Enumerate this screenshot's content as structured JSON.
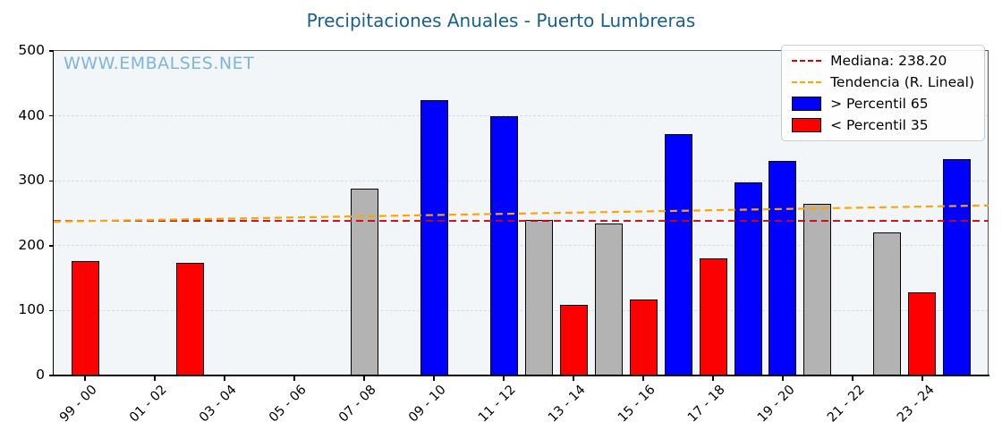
{
  "colors": {
    "title": "#19608c",
    "watermark": "#7fb6d8",
    "high": "#0000ff",
    "low": "#ff0000",
    "mid": "#b3b3b3",
    "bar_edge": "#000000",
    "median_line": "#dd0000",
    "trend_line": "#ffa500",
    "plot_bg": "#f2f6f9",
    "grid": "#d4dce3"
  },
  "chart_data": {
    "type": "bar",
    "title": "Precipitaciones Anuales - Puerto Lumbreras",
    "watermark": "WWW.EMBALSES.NET",
    "xlabel": "",
    "ylabel": "",
    "ylim": [
      0,
      500
    ],
    "yticks": [
      0,
      100,
      200,
      300,
      400,
      500
    ],
    "xlim": [
      -0.9,
      25.9
    ],
    "grid": "horizontal-dashed",
    "legend_position": "upper-right",
    "xticks": [
      {
        "index": 0,
        "label": "99 - 00"
      },
      {
        "index": 2,
        "label": "01 - 02"
      },
      {
        "index": 4,
        "label": "03 - 04"
      },
      {
        "index": 6,
        "label": "05 - 06"
      },
      {
        "index": 8,
        "label": "07 - 08"
      },
      {
        "index": 10,
        "label": "09 - 10"
      },
      {
        "index": 12,
        "label": "11 - 12"
      },
      {
        "index": 14,
        "label": "13 - 14"
      },
      {
        "index": 16,
        "label": "15 - 16"
      },
      {
        "index": 18,
        "label": "17 - 18"
      },
      {
        "index": 20,
        "label": "19 - 20"
      },
      {
        "index": 22,
        "label": "21 - 22"
      },
      {
        "index": 24,
        "label": "23 - 24"
      }
    ],
    "bars": [
      {
        "index": 0,
        "season": "99-00",
        "value": 176,
        "category": "low"
      },
      {
        "index": 3,
        "season": "02-03",
        "value": 173,
        "category": "low"
      },
      {
        "index": 8,
        "season": "07-08",
        "value": 288,
        "category": "mid"
      },
      {
        "index": 10,
        "season": "09-10",
        "value": 424,
        "category": "high"
      },
      {
        "index": 12,
        "season": "11-12",
        "value": 400,
        "category": "high"
      },
      {
        "index": 13,
        "season": "12-13",
        "value": 240,
        "category": "mid"
      },
      {
        "index": 14,
        "season": "13-14",
        "value": 109,
        "category": "low"
      },
      {
        "index": 15,
        "season": "14-15",
        "value": 234,
        "category": "mid"
      },
      {
        "index": 16,
        "season": "15-16",
        "value": 117,
        "category": "low"
      },
      {
        "index": 17,
        "season": "16-17",
        "value": 372,
        "category": "high"
      },
      {
        "index": 18,
        "season": "17-18",
        "value": 181,
        "category": "low"
      },
      {
        "index": 19,
        "season": "18-19",
        "value": 297,
        "category": "high"
      },
      {
        "index": 20,
        "season": "19-20",
        "value": 331,
        "category": "high"
      },
      {
        "index": 21,
        "season": "20-21",
        "value": 264,
        "category": "mid"
      },
      {
        "index": 23,
        "season": "22-23",
        "value": 221,
        "category": "mid"
      },
      {
        "index": 24,
        "season": "23-24",
        "value": 128,
        "category": "low"
      },
      {
        "index": 25,
        "season": "24-25",
        "value": 333,
        "category": "high"
      }
    ],
    "median": {
      "value": 238.2,
      "label": "Mediana: 238.20"
    },
    "trend": {
      "label": "Tendencia (R. Lineal)",
      "start_value": 237,
      "end_value": 262
    },
    "legend": {
      "items": [
        {
          "label": "Mediana: 238.20",
          "swatch": "dashed-line",
          "color_key": "median_line"
        },
        {
          "label": "Tendencia (R. Lineal)",
          "swatch": "dashed-line",
          "color_key": "trend_line"
        },
        {
          "label": "> Percentil 65",
          "swatch": "patch",
          "color_key": "high"
        },
        {
          "label": "< Percentil 35",
          "swatch": "patch",
          "color_key": "low"
        }
      ]
    }
  }
}
